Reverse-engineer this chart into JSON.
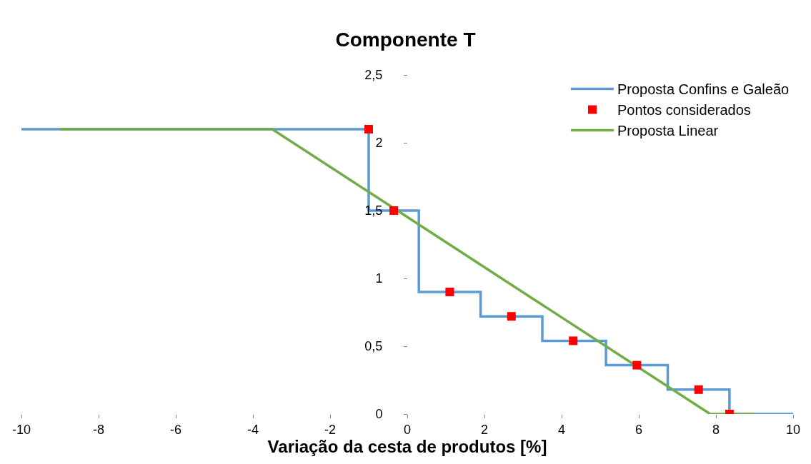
{
  "chart_data": {
    "type": "line",
    "title": "Componente T",
    "xlabel": "Variação da cesta de produtos [%]",
    "series": [
      {
        "name": "Proposta Confins e Galeão",
        "type": "step",
        "color": "#5b9bd5",
        "marker": "none",
        "x": [
          -10,
          -1,
          0.3,
          1.9,
          3.5,
          5.15,
          6.75,
          8.35,
          10
        ],
        "values": [
          2.1,
          1.5,
          0.9,
          0.72,
          0.54,
          0.36,
          0.18,
          0,
          0
        ]
      },
      {
        "name": "Pontos considerados",
        "type": "scatter",
        "color": "#ff0000",
        "marker": "square",
        "x": [
          -1,
          -0.35,
          1.1,
          2.7,
          4.3,
          5.95,
          7.55,
          8.35
        ],
        "values": [
          2.1,
          1.5,
          0.9,
          0.72,
          0.54,
          0.36,
          0.18,
          0
        ]
      },
      {
        "name": "Proposta Linear",
        "color": "#70ad47",
        "marker": "none",
        "x": [
          -9,
          -3.5,
          7.85,
          9
        ],
        "values": [
          2.1,
          2.1,
          0,
          0
        ]
      }
    ],
    "xlim": [
      -10,
      10
    ],
    "xticks": [
      -10,
      -8,
      -6,
      -4,
      -2,
      0,
      2,
      4,
      6,
      8,
      10
    ],
    "ylim": [
      0,
      2.5
    ],
    "yticks": [
      0,
      {
        "value": 0.5,
        "label": "0,5"
      },
      1,
      {
        "value": 1.5,
        "label": "1,5"
      },
      2,
      {
        "value": 2.5,
        "label": "2,5"
      }
    ],
    "legend": "top right"
  }
}
